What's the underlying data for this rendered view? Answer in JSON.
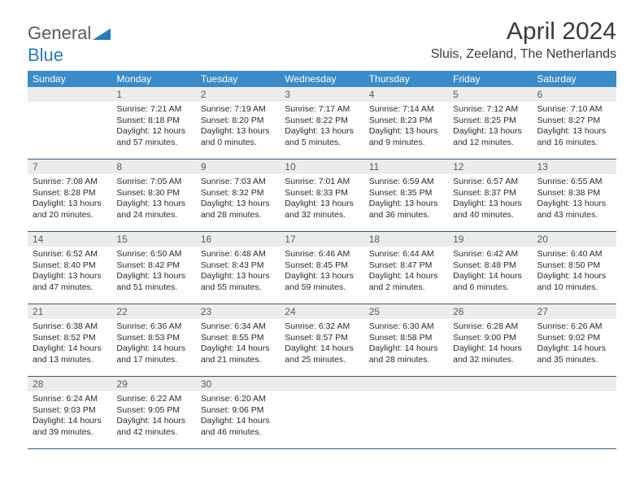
{
  "logo": {
    "text1": "General",
    "text2": "Blue"
  },
  "title": "April 2024",
  "location": "Sluis, Zeeland, The Netherlands",
  "colors": {
    "header_bg": "#3b8bc8",
    "header_text": "#ffffff",
    "daynum_bg": "#ececec",
    "rule": "#3b5a78",
    "logo_gray": "#5a5a5a",
    "logo_blue": "#2a7ab9"
  },
  "weekdays": [
    "Sunday",
    "Monday",
    "Tuesday",
    "Wednesday",
    "Thursday",
    "Friday",
    "Saturday"
  ],
  "weeks": [
    [
      {
        "n": "",
        "lines": [
          "",
          "",
          "",
          ""
        ]
      },
      {
        "n": "1",
        "lines": [
          "Sunrise: 7:21 AM",
          "Sunset: 8:18 PM",
          "Daylight: 12 hours",
          "and 57 minutes."
        ]
      },
      {
        "n": "2",
        "lines": [
          "Sunrise: 7:19 AM",
          "Sunset: 8:20 PM",
          "Daylight: 13 hours",
          "and 0 minutes."
        ]
      },
      {
        "n": "3",
        "lines": [
          "Sunrise: 7:17 AM",
          "Sunset: 8:22 PM",
          "Daylight: 13 hours",
          "and 5 minutes."
        ]
      },
      {
        "n": "4",
        "lines": [
          "Sunrise: 7:14 AM",
          "Sunset: 8:23 PM",
          "Daylight: 13 hours",
          "and 9 minutes."
        ]
      },
      {
        "n": "5",
        "lines": [
          "Sunrise: 7:12 AM",
          "Sunset: 8:25 PM",
          "Daylight: 13 hours",
          "and 12 minutes."
        ]
      },
      {
        "n": "6",
        "lines": [
          "Sunrise: 7:10 AM",
          "Sunset: 8:27 PM",
          "Daylight: 13 hours",
          "and 16 minutes."
        ]
      }
    ],
    [
      {
        "n": "7",
        "lines": [
          "Sunrise: 7:08 AM",
          "Sunset: 8:28 PM",
          "Daylight: 13 hours",
          "and 20 minutes."
        ]
      },
      {
        "n": "8",
        "lines": [
          "Sunrise: 7:05 AM",
          "Sunset: 8:30 PM",
          "Daylight: 13 hours",
          "and 24 minutes."
        ]
      },
      {
        "n": "9",
        "lines": [
          "Sunrise: 7:03 AM",
          "Sunset: 8:32 PM",
          "Daylight: 13 hours",
          "and 28 minutes."
        ]
      },
      {
        "n": "10",
        "lines": [
          "Sunrise: 7:01 AM",
          "Sunset: 8:33 PM",
          "Daylight: 13 hours",
          "and 32 minutes."
        ]
      },
      {
        "n": "11",
        "lines": [
          "Sunrise: 6:59 AM",
          "Sunset: 8:35 PM",
          "Daylight: 13 hours",
          "and 36 minutes."
        ]
      },
      {
        "n": "12",
        "lines": [
          "Sunrise: 6:57 AM",
          "Sunset: 8:37 PM",
          "Daylight: 13 hours",
          "and 40 minutes."
        ]
      },
      {
        "n": "13",
        "lines": [
          "Sunrise: 6:55 AM",
          "Sunset: 8:38 PM",
          "Daylight: 13 hours",
          "and 43 minutes."
        ]
      }
    ],
    [
      {
        "n": "14",
        "lines": [
          "Sunrise: 6:52 AM",
          "Sunset: 8:40 PM",
          "Daylight: 13 hours",
          "and 47 minutes."
        ]
      },
      {
        "n": "15",
        "lines": [
          "Sunrise: 6:50 AM",
          "Sunset: 8:42 PM",
          "Daylight: 13 hours",
          "and 51 minutes."
        ]
      },
      {
        "n": "16",
        "lines": [
          "Sunrise: 6:48 AM",
          "Sunset: 8:43 PM",
          "Daylight: 13 hours",
          "and 55 minutes."
        ]
      },
      {
        "n": "17",
        "lines": [
          "Sunrise: 6:46 AM",
          "Sunset: 8:45 PM",
          "Daylight: 13 hours",
          "and 59 minutes."
        ]
      },
      {
        "n": "18",
        "lines": [
          "Sunrise: 6:44 AM",
          "Sunset: 8:47 PM",
          "Daylight: 14 hours",
          "and 2 minutes."
        ]
      },
      {
        "n": "19",
        "lines": [
          "Sunrise: 6:42 AM",
          "Sunset: 8:48 PM",
          "Daylight: 14 hours",
          "and 6 minutes."
        ]
      },
      {
        "n": "20",
        "lines": [
          "Sunrise: 6:40 AM",
          "Sunset: 8:50 PM",
          "Daylight: 14 hours",
          "and 10 minutes."
        ]
      }
    ],
    [
      {
        "n": "21",
        "lines": [
          "Sunrise: 6:38 AM",
          "Sunset: 8:52 PM",
          "Daylight: 14 hours",
          "and 13 minutes."
        ]
      },
      {
        "n": "22",
        "lines": [
          "Sunrise: 6:36 AM",
          "Sunset: 8:53 PM",
          "Daylight: 14 hours",
          "and 17 minutes."
        ]
      },
      {
        "n": "23",
        "lines": [
          "Sunrise: 6:34 AM",
          "Sunset: 8:55 PM",
          "Daylight: 14 hours",
          "and 21 minutes."
        ]
      },
      {
        "n": "24",
        "lines": [
          "Sunrise: 6:32 AM",
          "Sunset: 8:57 PM",
          "Daylight: 14 hours",
          "and 25 minutes."
        ]
      },
      {
        "n": "25",
        "lines": [
          "Sunrise: 6:30 AM",
          "Sunset: 8:58 PM",
          "Daylight: 14 hours",
          "and 28 minutes."
        ]
      },
      {
        "n": "26",
        "lines": [
          "Sunrise: 6:28 AM",
          "Sunset: 9:00 PM",
          "Daylight: 14 hours",
          "and 32 minutes."
        ]
      },
      {
        "n": "27",
        "lines": [
          "Sunrise: 6:26 AM",
          "Sunset: 9:02 PM",
          "Daylight: 14 hours",
          "and 35 minutes."
        ]
      }
    ],
    [
      {
        "n": "28",
        "lines": [
          "Sunrise: 6:24 AM",
          "Sunset: 9:03 PM",
          "Daylight: 14 hours",
          "and 39 minutes."
        ]
      },
      {
        "n": "29",
        "lines": [
          "Sunrise: 6:22 AM",
          "Sunset: 9:05 PM",
          "Daylight: 14 hours",
          "and 42 minutes."
        ]
      },
      {
        "n": "30",
        "lines": [
          "Sunrise: 6:20 AM",
          "Sunset: 9:06 PM",
          "Daylight: 14 hours",
          "and 46 minutes."
        ]
      },
      {
        "n": "",
        "lines": [
          "",
          "",
          "",
          ""
        ]
      },
      {
        "n": "",
        "lines": [
          "",
          "",
          "",
          ""
        ]
      },
      {
        "n": "",
        "lines": [
          "",
          "",
          "",
          ""
        ]
      },
      {
        "n": "",
        "lines": [
          "",
          "",
          "",
          ""
        ]
      }
    ]
  ]
}
